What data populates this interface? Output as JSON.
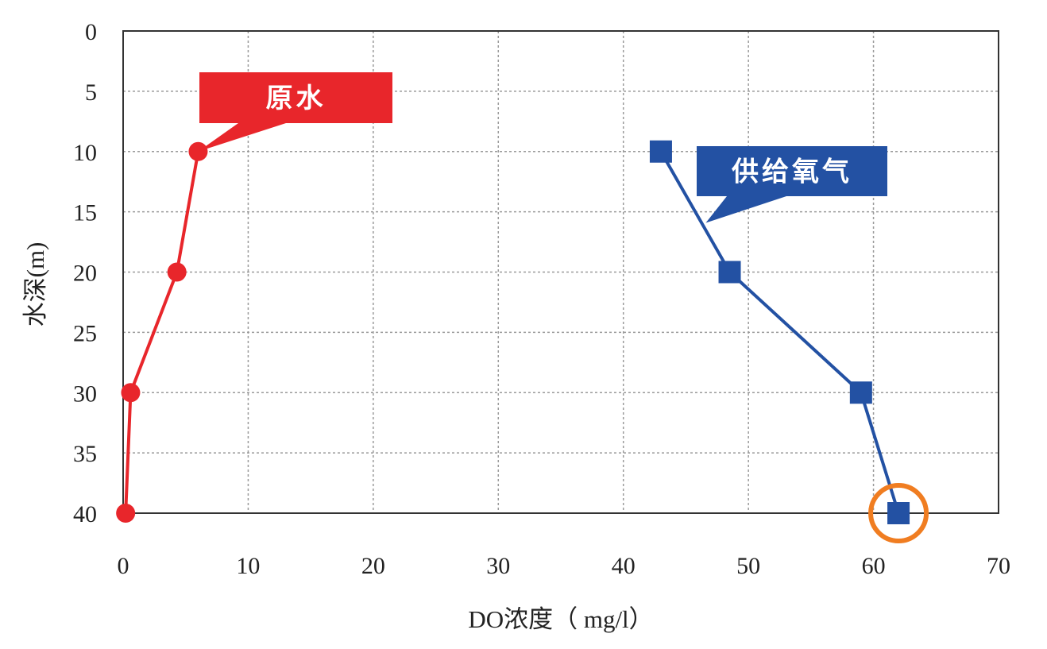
{
  "chart_data": {
    "type": "line",
    "xlabel": "DO浓度（ mg/l）",
    "ylabel": "水深(m)",
    "xlim": [
      0,
      70
    ],
    "ylim": [
      0,
      40
    ],
    "y_inverted": true,
    "x_ticks": [
      0,
      10,
      20,
      30,
      40,
      50,
      60,
      70
    ],
    "y_ticks": [
      0,
      5,
      10,
      15,
      20,
      25,
      30,
      35,
      40
    ],
    "grid": true,
    "series": [
      {
        "name": "原水",
        "color": "#e8262b",
        "marker": "circle",
        "points": [
          {
            "x": 6.0,
            "y": 10
          },
          {
            "x": 4.3,
            "y": 20
          },
          {
            "x": 0.6,
            "y": 30
          },
          {
            "x": 0.2,
            "y": 40
          }
        ]
      },
      {
        "name": "供给氧气",
        "color": "#2351a3",
        "marker": "square",
        "points": [
          {
            "x": 43.0,
            "y": 10
          },
          {
            "x": 48.5,
            "y": 20
          },
          {
            "x": 59.0,
            "y": 30
          },
          {
            "x": 62.0,
            "y": 40
          }
        ]
      }
    ],
    "highlight": {
      "x": 62.0,
      "y": 40,
      "color": "#f07d21"
    }
  }
}
